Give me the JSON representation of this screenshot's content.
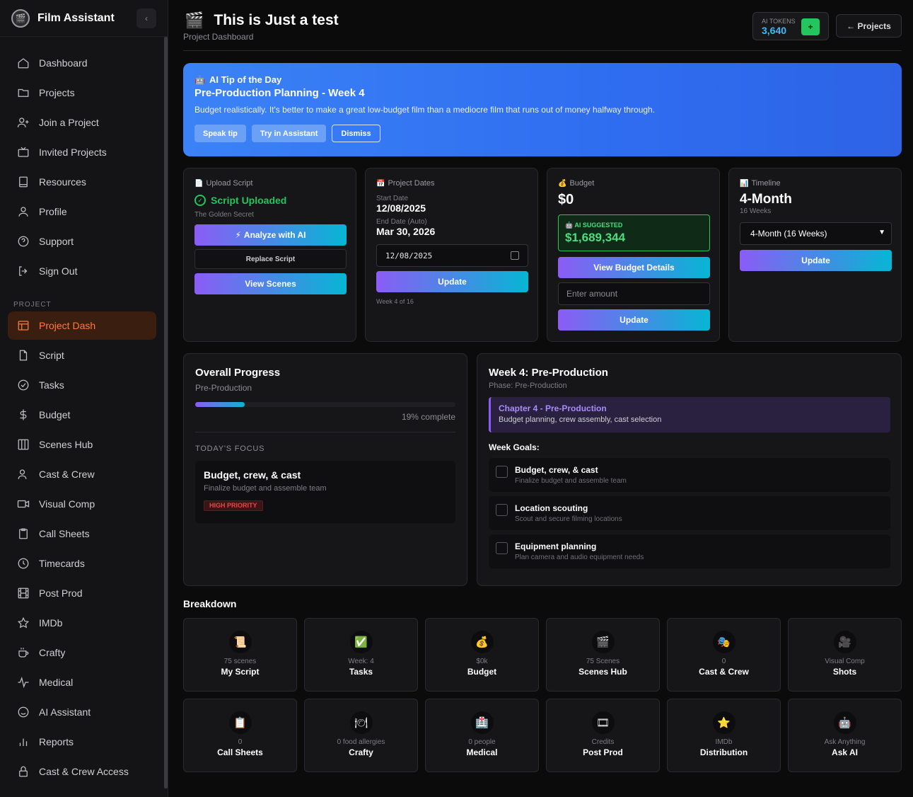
{
  "sidebar": {
    "brand": "Film Assistant",
    "items": [
      {
        "label": "Dashboard"
      },
      {
        "label": "Projects"
      },
      {
        "label": "Join a Project"
      },
      {
        "label": "Invited Projects"
      },
      {
        "label": "Resources"
      },
      {
        "label": "Profile"
      },
      {
        "label": "Support"
      },
      {
        "label": "Sign Out"
      }
    ],
    "section_label": "PROJECT",
    "project_items": [
      {
        "label": "Project Dash"
      },
      {
        "label": "Script"
      },
      {
        "label": "Tasks"
      },
      {
        "label": "Budget"
      },
      {
        "label": "Scenes Hub"
      },
      {
        "label": "Cast & Crew"
      },
      {
        "label": "Visual Comp"
      },
      {
        "label": "Call Sheets"
      },
      {
        "label": "Timecards"
      },
      {
        "label": "Post Prod"
      },
      {
        "label": "IMDb"
      },
      {
        "label": "Crafty"
      },
      {
        "label": "Medical"
      },
      {
        "label": "AI Assistant"
      },
      {
        "label": "Reports"
      },
      {
        "label": "Cast & Crew Access"
      }
    ]
  },
  "header": {
    "title": "This is Just a test",
    "subtitle": "Project Dashboard",
    "tokens_label": "AI TOKENS",
    "tokens_value": "3,640",
    "tokens_plus": "+",
    "projects_button": "← Projects"
  },
  "tip": {
    "heading": "AI Tip of the Day",
    "title": "Pre-Production Planning - Week 4",
    "text": "Budget realistically. It's better to make a great low-budget film than a mediocre film that runs out of money halfway through.",
    "speak_label": "Speak tip",
    "try_label": "Try in Assistant",
    "dismiss_label": "Dismiss"
  },
  "upload": {
    "header": "Upload Script",
    "status": "Script Uploaded",
    "filename": "The Golden Secret",
    "analyze_label": "Analyze with AI",
    "replace_label": "Replace Script",
    "view_label": "View Scenes"
  },
  "dates": {
    "header": "Project Dates",
    "start_label": "Start Date",
    "start_value": "12/08/2025",
    "end_label": "End Date (Auto)",
    "end_value": "Mar 30, 2026",
    "input_value": "12/08/2025",
    "update_label": "Update",
    "week_note": "Week 4 of 16"
  },
  "budget": {
    "header": "Budget",
    "value": "$0",
    "ai_label": "AI SUGGESTED",
    "ai_value": "$1,689,344",
    "details_label": "View Budget Details",
    "input_placeholder": "Enter amount",
    "update_label": "Update"
  },
  "timeline": {
    "header": "Timeline",
    "value": "4-Month",
    "weeks": "16 Weeks",
    "select_value": "4-Month (16 Weeks)",
    "update_label": "Update"
  },
  "progress": {
    "title": "Overall Progress",
    "phase": "Pre-Production",
    "percent": 19,
    "percent_text": "19% complete",
    "focus_label": "TODAY'S FOCUS",
    "focus_title": "Budget, crew, & cast",
    "focus_sub": "Finalize budget and assemble team",
    "priority": "HIGH PRIORITY"
  },
  "week": {
    "title": "Week 4: Pre-Production",
    "phase": "Phase: Pre-Production",
    "chapter_title": "Chapter 4 - Pre-Production",
    "chapter_sub": "Budget planning, crew assembly, cast selection",
    "goals_label": "Week Goals:",
    "goals": [
      {
        "title": "Budget, crew, & cast",
        "sub": "Finalize budget and assemble team"
      },
      {
        "title": "Location scouting",
        "sub": "Scout and secure filming locations"
      },
      {
        "title": "Equipment planning",
        "sub": "Plan camera and audio equipment needs"
      }
    ]
  },
  "breakdown": {
    "title": "Breakdown",
    "tiles": [
      {
        "icon": "📜",
        "sub": "75 scenes",
        "label": "My Script"
      },
      {
        "icon": "✅",
        "sub": "Week: 4",
        "label": "Tasks"
      },
      {
        "icon": "💰",
        "sub": "$0k",
        "label": "Budget"
      },
      {
        "icon": "🎬",
        "sub": "75 Scenes",
        "label": "Scenes Hub"
      },
      {
        "icon": "🎭",
        "sub": "0",
        "label": "Cast & Crew"
      },
      {
        "icon": "🎥",
        "sub": "Visual Comp",
        "label": "Shots"
      },
      {
        "icon": "📋",
        "sub": "0",
        "label": "Call Sheets"
      },
      {
        "icon": "🍽",
        "sub": "0 food allergies",
        "label": "Crafty"
      },
      {
        "icon": "🏥",
        "sub": "0 people",
        "label": "Medical"
      },
      {
        "icon": "🎞",
        "sub": "Credits",
        "label": "Post Prod"
      },
      {
        "icon": "⭐",
        "sub": "IMDb",
        "label": "Distribution"
      },
      {
        "icon": "🤖",
        "sub": "Ask Anything",
        "label": "Ask AI"
      }
    ]
  }
}
